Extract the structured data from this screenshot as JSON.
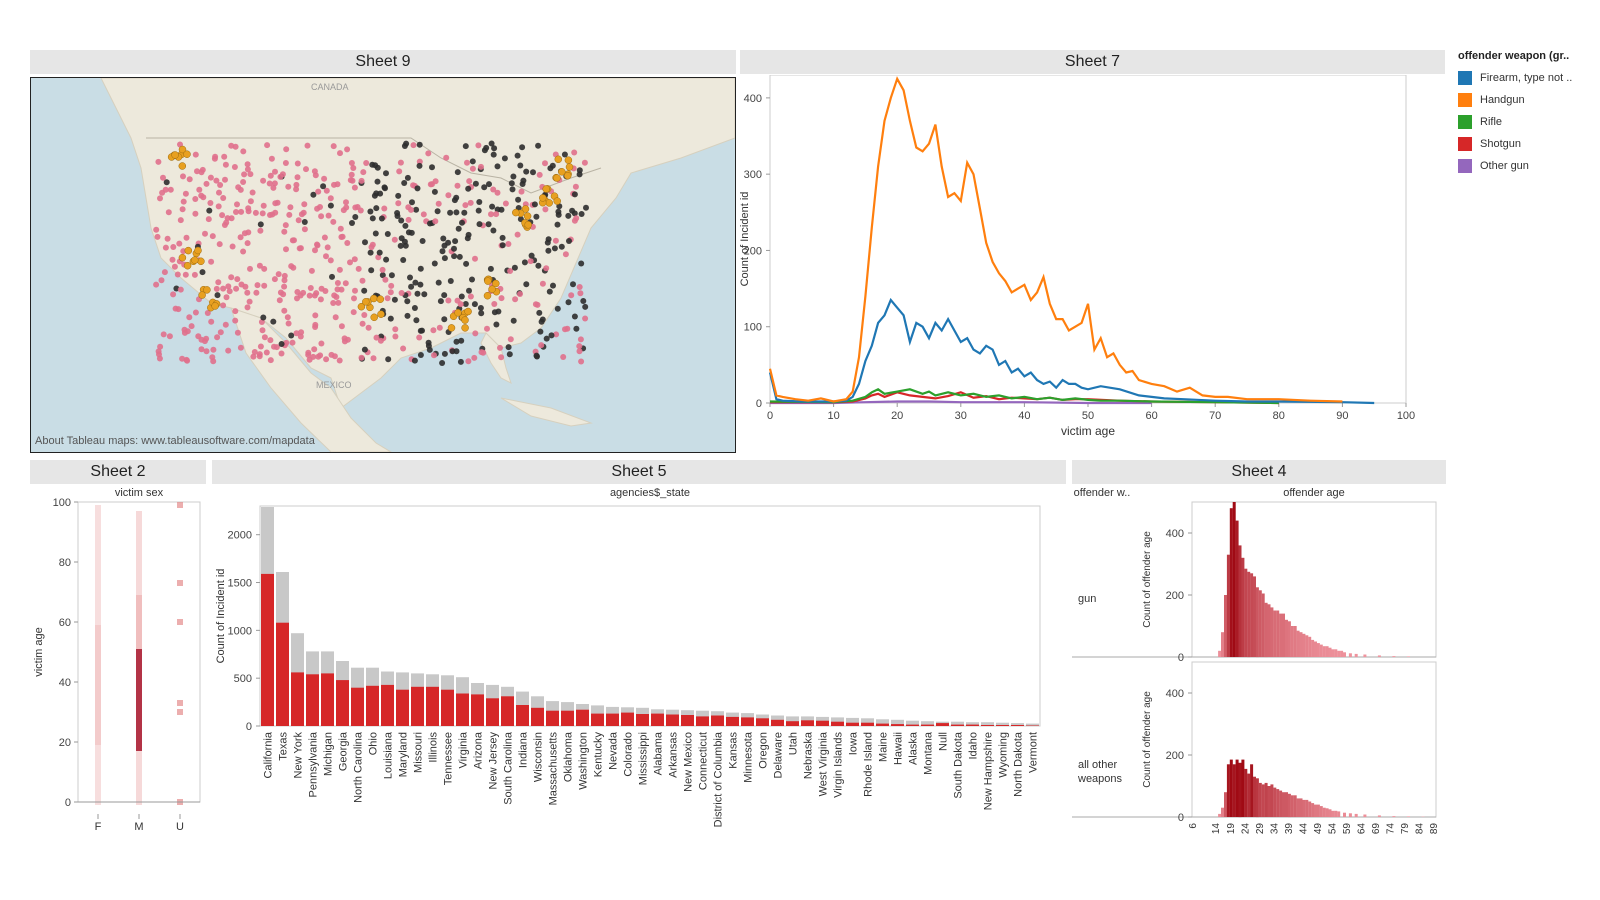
{
  "titles": {
    "sheet9": "Sheet 9",
    "sheet7": "Sheet 7",
    "sheet2": "Sheet 2",
    "sheet5": "Sheet 5",
    "sheet4": "Sheet 4"
  },
  "map": {
    "attribution": "About Tableau maps: www.tableausoftware.com/mapdata",
    "labels": {
      "canada": "CANADA",
      "mexico": "MEXICO"
    }
  },
  "legend": {
    "title": "offender weapon (gr..",
    "items": [
      {
        "label": "Firearm, type not ..",
        "color": "#1f77b4"
      },
      {
        "label": "Handgun",
        "color": "#ff7f0e"
      },
      {
        "label": "Rifle",
        "color": "#2ca02c"
      },
      {
        "label": "Shotgun",
        "color": "#d62728"
      },
      {
        "label": "Other gun",
        "color": "#9467bd"
      }
    ]
  },
  "chart_data": [
    {
      "id": "sheet7",
      "type": "line",
      "title": "Sheet 7",
      "xlabel": "victim age",
      "ylabel": "Count of Incident id",
      "xlim": [
        0,
        100
      ],
      "ylim": [
        0,
        430
      ],
      "xticks": [
        0,
        10,
        20,
        30,
        40,
        50,
        60,
        70,
        80,
        90,
        100
      ],
      "yticks": [
        0,
        100,
        200,
        300,
        400
      ],
      "series": [
        {
          "name": "Handgun",
          "color": "#ff7f0e",
          "x": [
            0,
            1,
            2,
            4,
            6,
            8,
            10,
            12,
            13,
            14,
            15,
            16,
            17,
            18,
            19,
            20,
            21,
            22,
            23,
            24,
            25,
            26,
            27,
            28,
            29,
            30,
            31,
            32,
            33,
            34,
            35,
            36,
            37,
            38,
            39,
            40,
            41,
            42,
            43,
            44,
            45,
            46,
            47,
            48,
            49,
            50,
            51,
            52,
            53,
            54,
            55,
            56,
            57,
            58,
            60,
            62,
            64,
            66,
            68,
            70,
            72,
            75,
            80,
            85,
            90
          ],
          "y": [
            45,
            10,
            8,
            5,
            3,
            6,
            2,
            5,
            15,
            60,
            140,
            230,
            310,
            370,
            400,
            425,
            410,
            370,
            335,
            330,
            340,
            365,
            310,
            270,
            275,
            265,
            315,
            300,
            255,
            210,
            185,
            170,
            160,
            145,
            150,
            155,
            135,
            145,
            165,
            130,
            110,
            110,
            95,
            100,
            105,
            130,
            70,
            85,
            60,
            65,
            50,
            40,
            42,
            30,
            25,
            22,
            15,
            20,
            10,
            8,
            8,
            5,
            5,
            3,
            2
          ]
        },
        {
          "name": "Firearm, type not ..",
          "color": "#1f77b4",
          "x": [
            0,
            1,
            2,
            5,
            10,
            12,
            13,
            14,
            15,
            16,
            17,
            18,
            19,
            20,
            21,
            22,
            23,
            24,
            25,
            26,
            27,
            28,
            29,
            30,
            31,
            32,
            33,
            34,
            35,
            36,
            37,
            38,
            39,
            40,
            41,
            42,
            43,
            44,
            45,
            46,
            47,
            48,
            49,
            50,
            52,
            55,
            58,
            60,
            62,
            65,
            70,
            75,
            80,
            90,
            95
          ],
          "y": [
            40,
            5,
            3,
            2,
            2,
            3,
            8,
            25,
            55,
            75,
            105,
            115,
            135,
            125,
            115,
            80,
            105,
            100,
            85,
            105,
            95,
            110,
            95,
            80,
            85,
            70,
            65,
            75,
            70,
            50,
            55,
            40,
            45,
            35,
            40,
            30,
            25,
            28,
            20,
            30,
            25,
            25,
            20,
            18,
            22,
            18,
            10,
            8,
            6,
            5,
            3,
            2,
            2,
            1,
            0
          ]
        },
        {
          "name": "Rifle",
          "color": "#2ca02c",
          "x": [
            0,
            10,
            13,
            15,
            16,
            17,
            18,
            20,
            22,
            24,
            25,
            26,
            28,
            30,
            32,
            34,
            36,
            38,
            40,
            42,
            44,
            46,
            48,
            50,
            52,
            55,
            60,
            70,
            80
          ],
          "y": [
            2,
            1,
            3,
            8,
            14,
            18,
            12,
            15,
            18,
            12,
            15,
            10,
            14,
            10,
            12,
            8,
            10,
            6,
            8,
            5,
            7,
            4,
            6,
            4,
            3,
            3,
            2,
            1,
            0
          ]
        },
        {
          "name": "Shotgun",
          "color": "#d62728",
          "x": [
            0,
            10,
            13,
            15,
            16,
            17,
            18,
            20,
            22,
            24,
            26,
            28,
            30,
            32,
            34,
            36,
            38,
            40,
            42,
            44,
            46,
            48,
            50,
            55,
            60,
            70,
            80
          ],
          "y": [
            1,
            1,
            2,
            6,
            10,
            12,
            8,
            14,
            10,
            8,
            6,
            9,
            14,
            7,
            9,
            5,
            7,
            6,
            5,
            7,
            4,
            5,
            5,
            3,
            2,
            1,
            0
          ]
        },
        {
          "name": "Other gun",
          "color": "#9467bd",
          "x": [
            0,
            10,
            15,
            20,
            25,
            30,
            35,
            40,
            50,
            60
          ],
          "y": [
            0,
            0,
            1,
            2,
            2,
            1,
            1,
            1,
            0,
            0
          ]
        }
      ]
    },
    {
      "id": "sheet2",
      "type": "strip",
      "title": "Sheet 2",
      "column_header": "victim sex",
      "ylabel": "victim age",
      "categories": [
        "F",
        "M",
        "U"
      ],
      "ylim": [
        0,
        100
      ],
      "yticks": [
        0,
        20,
        40,
        60,
        80,
        100
      ]
    },
    {
      "id": "sheet5",
      "type": "bar",
      "title": "Sheet 5",
      "column_header": "agencies$_state",
      "ylabel": "Count of Incident id",
      "ylim": [
        0,
        2300
      ],
      "yticks": [
        0,
        500,
        1000,
        1500,
        2000
      ],
      "categories": [
        "California",
        "Texas",
        "New York",
        "Pennsylvania",
        "Michigan",
        "Georgia",
        "North Carolina",
        "Ohio",
        "Louisiana",
        "Maryland",
        "Missouri",
        "Illinois",
        "Tennessee",
        "Virginia",
        "Arizona",
        "New Jersey",
        "South Carolina",
        "Indiana",
        "Wisconsin",
        "Massachusetts",
        "Oklahoma",
        "Washington",
        "Kentucky",
        "Nevada",
        "Colorado",
        "Mississippi",
        "Alabama",
        "Arkansas",
        "New Mexico",
        "Connecticut",
        "District of Columbia",
        "Kansas",
        "Minnesota",
        "Oregon",
        "Delaware",
        "Utah",
        "Nebraska",
        "West Virginia",
        "Virgin Islands",
        "Iowa",
        "Rhode Island",
        "Maine",
        "Hawaii",
        "Alaska",
        "Montana",
        "Null",
        "South Dakota",
        "Idaho",
        "New Hampshire",
        "Wyoming",
        "North Dakota",
        "Vermont"
      ],
      "series": [
        {
          "name": "total",
          "color": "#c8c8c8",
          "values": [
            2290,
            1610,
            970,
            780,
            780,
            680,
            610,
            610,
            570,
            560,
            550,
            540,
            530,
            510,
            450,
            430,
            410,
            360,
            310,
            260,
            250,
            230,
            215,
            200,
            195,
            190,
            175,
            170,
            165,
            160,
            155,
            140,
            135,
            120,
            110,
            100,
            100,
            95,
            90,
            85,
            80,
            70,
            65,
            55,
            50,
            45,
            45,
            40,
            40,
            35,
            30,
            25
          ]
        },
        {
          "name": "gun",
          "color": "#d62728",
          "values": [
            1590,
            1080,
            560,
            540,
            550,
            480,
            400,
            420,
            430,
            380,
            410,
            410,
            380,
            340,
            330,
            290,
            310,
            220,
            190,
            160,
            160,
            170,
            130,
            130,
            140,
            125,
            130,
            120,
            115,
            100,
            110,
            95,
            90,
            80,
            65,
            50,
            60,
            55,
            45,
            35,
            35,
            25,
            20,
            15,
            15,
            30,
            15,
            15,
            10,
            10,
            10,
            5
          ]
        }
      ]
    },
    {
      "id": "sheet4",
      "type": "histogram",
      "title": "Sheet 4",
      "row_header": "offender w..",
      "column_header": "offender age",
      "ylabel": "Count of offender age",
      "ylim": [
        0,
        500
      ],
      "yticks": [
        0,
        200,
        400
      ],
      "x_range": [
        6,
        90
      ],
      "xticks": [
        "6",
        "14",
        "19",
        "24",
        "29",
        "34",
        "39",
        "44",
        "49",
        "54",
        "59",
        "64",
        "69",
        "74",
        "79",
        "84",
        "89"
      ],
      "rows": [
        {
          "label": "gun",
          "x": [
            15,
            16,
            17,
            18,
            19,
            20,
            21,
            22,
            23,
            24,
            25,
            26,
            27,
            28,
            29,
            30,
            31,
            32,
            33,
            34,
            35,
            36,
            37,
            38,
            39,
            40,
            41,
            42,
            43,
            44,
            45,
            46,
            47,
            48,
            49,
            50,
            51,
            52,
            53,
            54,
            55,
            56,
            57,
            58,
            60,
            62,
            65,
            70,
            75,
            80
          ],
          "y": [
            20,
            80,
            200,
            330,
            480,
            500,
            440,
            360,
            320,
            285,
            275,
            270,
            260,
            225,
            215,
            205,
            175,
            170,
            160,
            150,
            150,
            140,
            140,
            120,
            115,
            100,
            100,
            85,
            80,
            75,
            70,
            65,
            55,
            50,
            45,
            40,
            35,
            35,
            30,
            25,
            25,
            20,
            20,
            15,
            12,
            10,
            8,
            5,
            3,
            2
          ]
        },
        {
          "label": "all other weapons",
          "x": [
            15,
            16,
            17,
            18,
            19,
            20,
            21,
            22,
            23,
            24,
            25,
            26,
            27,
            28,
            29,
            30,
            31,
            32,
            33,
            34,
            35,
            36,
            37,
            38,
            39,
            40,
            41,
            42,
            43,
            44,
            45,
            46,
            47,
            48,
            49,
            50,
            51,
            52,
            53,
            54,
            55,
            56,
            58,
            60,
            62,
            65,
            70,
            75,
            80,
            85
          ],
          "y": [
            10,
            30,
            80,
            170,
            185,
            170,
            185,
            175,
            185,
            155,
            140,
            170,
            130,
            125,
            110,
            105,
            110,
            100,
            105,
            95,
            90,
            85,
            80,
            80,
            75,
            70,
            70,
            60,
            60,
            55,
            55,
            50,
            45,
            40,
            40,
            35,
            30,
            28,
            25,
            20,
            20,
            18,
            14,
            12,
            10,
            8,
            5,
            3,
            2,
            1
          ]
        }
      ]
    }
  ],
  "labels": {
    "row_gun": "gun",
    "row_other_1": "all other",
    "row_other_2": "weapons"
  }
}
